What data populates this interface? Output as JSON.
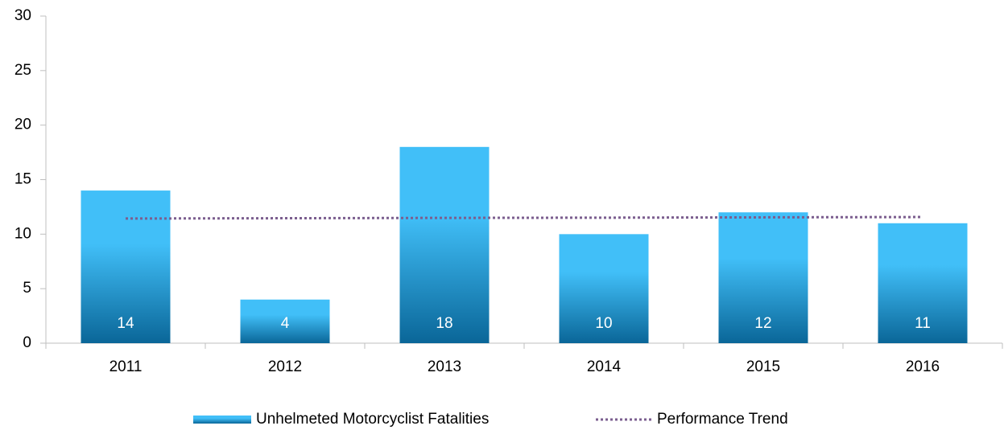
{
  "chart_data": {
    "type": "bar",
    "categories": [
      "2011",
      "2012",
      "2013",
      "2014",
      "2015",
      "2016"
    ],
    "series": [
      {
        "name": "Unhelmeted Motorcyclist Fatalities",
        "type": "bar",
        "color": "#41bff8",
        "color_dark": "#0a6698",
        "values": [
          14,
          4,
          18,
          10,
          12,
          11
        ]
      },
      {
        "name": "Performance Trend",
        "type": "line",
        "color": "#7b5e8f",
        "values": [
          11.43,
          11.46,
          11.49,
          11.51,
          11.54,
          11.57
        ]
      }
    ],
    "ylim": [
      0,
      30
    ],
    "yticks": [
      0,
      5,
      10,
      15,
      20,
      25,
      30
    ],
    "grid": false,
    "legend": "bottom"
  }
}
